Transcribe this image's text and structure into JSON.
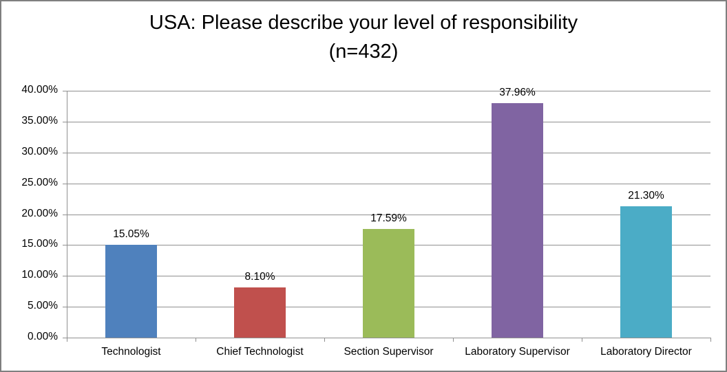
{
  "frame": {
    "background": "#ffffff",
    "border_color": "#7f7f7f"
  },
  "title": {
    "line1": "USA: Please describe your level of responsibility",
    "line2": "(n=432)"
  },
  "chart_data": {
    "type": "bar",
    "title": "USA: Please describe your level of responsibility (n=432)",
    "categories": [
      "Technologist",
      "Chief Technologist",
      "Section Supervisor",
      "Laboratory Supervisor",
      "Laboratory Director"
    ],
    "values": [
      15.05,
      8.1,
      17.59,
      37.96,
      21.3
    ],
    "value_labels": [
      "15.05%",
      "8.10%",
      "17.59%",
      "37.96%",
      "21.30%"
    ],
    "bar_colors": [
      "#4F81BD",
      "#C0504D",
      "#9BBB59",
      "#8064A2",
      "#4BACC6"
    ],
    "xlabel": "",
    "ylabel": "",
    "ylim": [
      0,
      40
    ],
    "y_tick_values": [
      0,
      5,
      10,
      15,
      20,
      25,
      30,
      35,
      40
    ],
    "y_tick_labels": [
      "0.00%",
      "5.00%",
      "10.00%",
      "15.00%",
      "20.00%",
      "25.00%",
      "30.00%",
      "35.00%",
      "40.00%"
    ],
    "grid": "horizontal",
    "legend": "none",
    "gridline_color": "#8f8f8f",
    "axis_color": "#8f8f8f",
    "label_color": "#000000"
  }
}
